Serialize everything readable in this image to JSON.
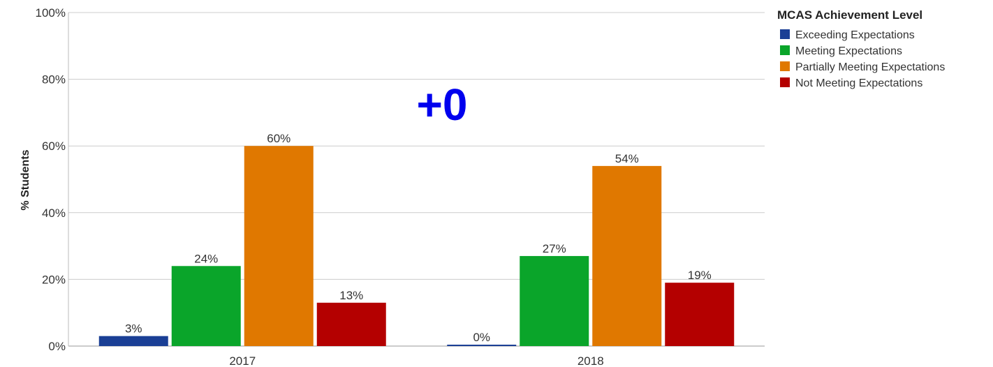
{
  "chart_data": {
    "type": "bar",
    "categories": [
      "2017",
      "2018"
    ],
    "series": [
      {
        "name": "Exceeding Expectations",
        "values": [
          3,
          0
        ],
        "labels": [
          "3%",
          "0%"
        ],
        "color": "#1a3f95"
      },
      {
        "name": "Meeting Expectations",
        "values": [
          24,
          27
        ],
        "labels": [
          "24%",
          "27%"
        ],
        "color": "#0aa52a"
      },
      {
        "name": "Partially Meeting Expectations",
        "values": [
          60,
          54
        ],
        "labels": [
          "60%",
          "54%"
        ],
        "color": "#e07800"
      },
      {
        "name": "Not Meeting Expectations",
        "values": [
          13,
          19
        ],
        "labels": [
          "13%",
          "19%"
        ],
        "color": "#b40000"
      }
    ],
    "ylabel": "% Students",
    "ylim": [
      0,
      100
    ],
    "yticks": [
      0,
      20,
      40,
      60,
      80,
      100
    ],
    "ytick_labels": [
      "0%",
      "20%",
      "40%",
      "60%",
      "80%",
      "100%"
    ],
    "legend_title": "MCAS Achievement Level",
    "legend_position": "top-right",
    "grid": true,
    "annotation": {
      "text": "+0",
      "color": "#0000ee"
    }
  }
}
